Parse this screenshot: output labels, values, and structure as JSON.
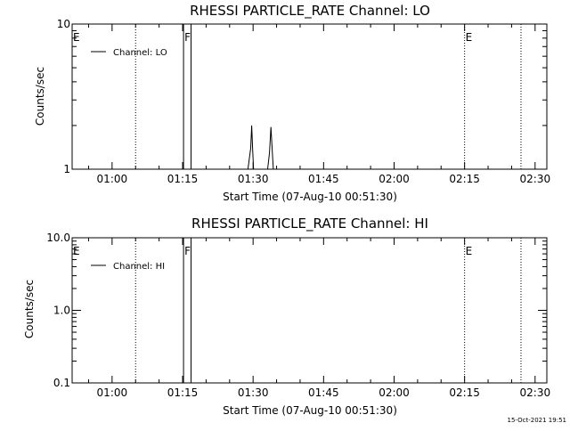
{
  "timestamp": "15-Oct-2021 19:51",
  "chart_data": [
    {
      "type": "line",
      "title": "RHESSI PARTICLE_RATE Channel: LO",
      "xlabel": "Start Time (07-Aug-10 00:51:30)",
      "ylabel": "Counts/sec",
      "x_units": "minutes after 00:51:30",
      "xlim": [
        0,
        101
      ],
      "ylim": [
        1,
        10
      ],
      "yscale": "log",
      "ytick_labels": [
        "10",
        "1"
      ],
      "ytick_values": [
        10,
        1
      ],
      "xtick_labels": [
        "01:00",
        "01:15",
        "01:30",
        "01:45",
        "02:00",
        "02:15",
        "02:30"
      ],
      "xtick_values": [
        8.5,
        23.5,
        38.5,
        53.5,
        68.5,
        83.5,
        98.5
      ],
      "legend": {
        "label": "Channel: LO",
        "position": "top-left"
      },
      "flags": [
        {
          "label": "E",
          "x": 0
        },
        {
          "label": "F",
          "x": 23.7
        },
        {
          "label": "E",
          "x": 83.5
        }
      ],
      "dotted_lines_x": [
        13.5,
        83.5,
        95.5
      ],
      "solid_lines_x": [
        23.7,
        25.3
      ],
      "series": [
        {
          "x": [
            37.4,
            38.0,
            38.2,
            38.4,
            38.6,
            41.6,
            42.0,
            42.3,
            42.6,
            42.8
          ],
          "y": [
            1,
            1.4,
            2.0,
            1.4,
            1,
            1,
            1.3,
            1.95,
            1.3,
            1
          ]
        }
      ]
    },
    {
      "type": "line",
      "title": "RHESSI PARTICLE_RATE Channel: HI",
      "xlabel": "Start Time (07-Aug-10 00:51:30)",
      "ylabel": "Counts/sec",
      "x_units": "minutes after 00:51:30",
      "xlim": [
        0,
        101
      ],
      "ylim": [
        0.1,
        10
      ],
      "yscale": "log",
      "ytick_labels": [
        "10.0",
        "1.0",
        "0.1"
      ],
      "ytick_values": [
        10,
        1,
        0.1
      ],
      "xtick_labels": [
        "01:00",
        "01:15",
        "01:30",
        "01:45",
        "02:00",
        "02:15",
        "02:30"
      ],
      "xtick_values": [
        8.5,
        23.5,
        38.5,
        53.5,
        68.5,
        83.5,
        98.5
      ],
      "legend": {
        "label": "Channel: HI",
        "position": "top-left"
      },
      "flags": [
        {
          "label": "E",
          "x": 0
        },
        {
          "label": "F",
          "x": 23.7
        },
        {
          "label": "E",
          "x": 83.5
        }
      ],
      "dotted_lines_x": [
        13.5,
        83.5,
        95.5
      ],
      "solid_lines_x": [
        23.7,
        25.3
      ],
      "series": []
    }
  ]
}
